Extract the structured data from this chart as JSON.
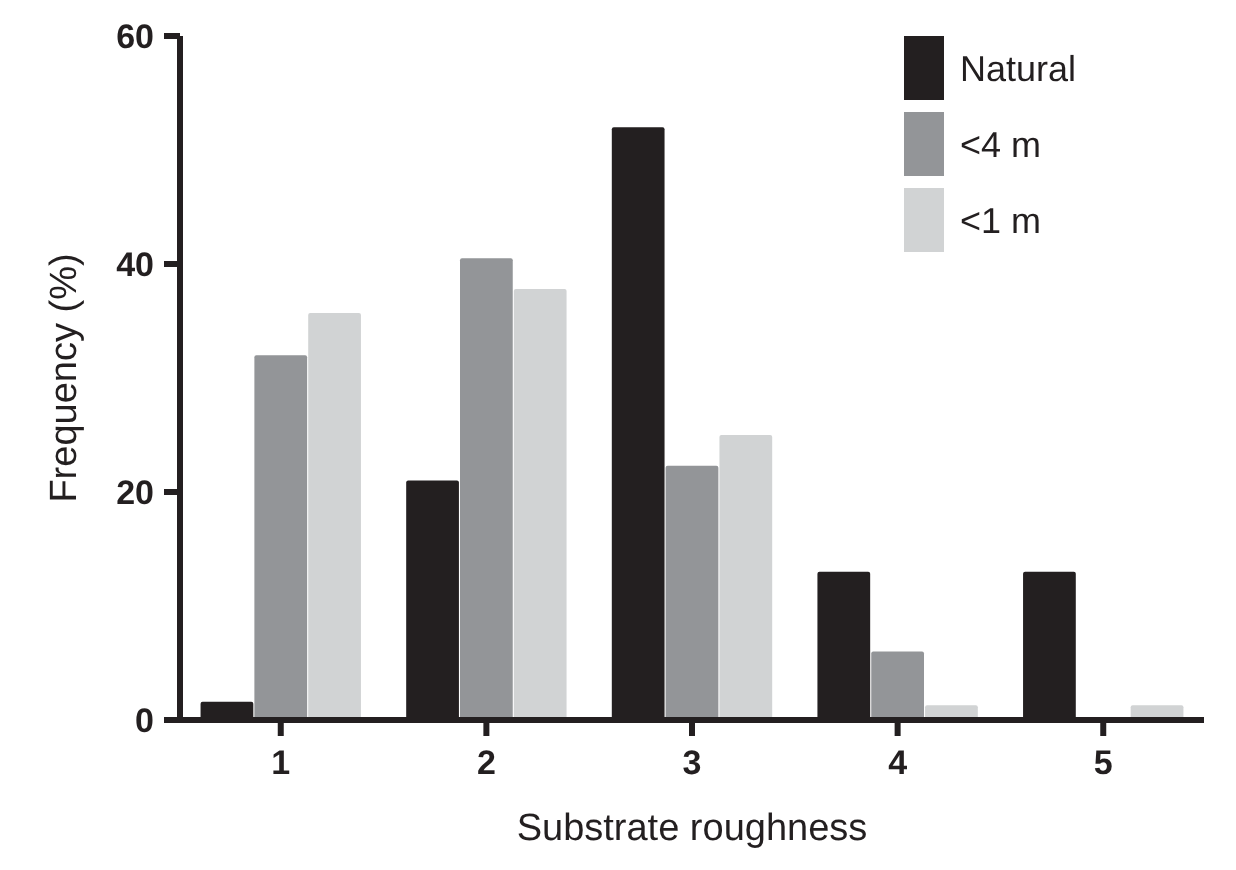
{
  "chart_data": {
    "type": "bar",
    "xlabel": "Substrate roughness",
    "ylabel": "Frequency (%)",
    "categories": [
      "1",
      "2",
      "3",
      "4",
      "5"
    ],
    "series": [
      {
        "name": "Natural",
        "color": "#231f20",
        "values": [
          1.6,
          21,
          52,
          13,
          13
        ]
      },
      {
        "name": "<4 m",
        "color": "#939598",
        "values": [
          32,
          40.5,
          22.3,
          6,
          0
        ]
      },
      {
        "name": "<1 m",
        "color": "#d1d3d4",
        "values": [
          35.7,
          37.8,
          25,
          1.3,
          1.3
        ]
      }
    ],
    "ylim": [
      0,
      60
    ],
    "yticks": [
      0,
      20,
      40,
      60
    ],
    "legend": "top right",
    "grid": false
  }
}
